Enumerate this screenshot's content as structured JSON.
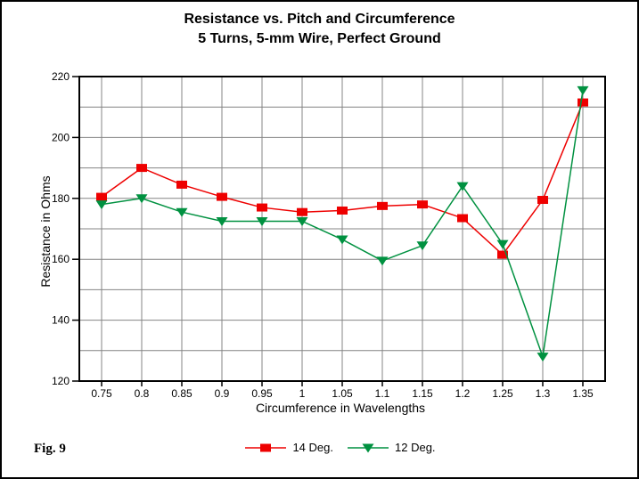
{
  "window": {
    "background": "#ffffff",
    "border_color": "#000000"
  },
  "title": {
    "line1": "Resistance vs. Pitch and Circumference",
    "line2": "5 Turns, 5-mm Wire, Perfect Ground"
  },
  "fig_label": "Fig. 9",
  "chart_data": {
    "type": "line",
    "title": "Resistance vs. Pitch and Circumference",
    "subtitle": "5 Turns, 5-mm Wire, Perfect Ground",
    "xlabel": "Circumference in Wavelengths",
    "ylabel": "Resistance in Ohms",
    "categories": [
      0.75,
      0.8,
      0.85,
      0.9,
      0.95,
      1,
      1.05,
      1.1,
      1.15,
      1.2,
      1.25,
      1.3,
      1.35
    ],
    "x_tick_labels": [
      "0.75",
      "0.8",
      "0.85",
      "0.9",
      "0.95",
      "1",
      "1.05",
      "1.1",
      "1.15",
      "1.2",
      "1.25",
      "1.3",
      "1.35"
    ],
    "y_ticks": [
      120,
      140,
      160,
      180,
      200,
      220
    ],
    "y_tick_labels": [
      "120",
      "140",
      "160",
      "180",
      "200",
      "220"
    ],
    "ylim": [
      120,
      220
    ],
    "grid": {
      "on": true,
      "color": "#848484",
      "y_step": 10
    },
    "frame_color": "#000000",
    "tick_color": "#000000",
    "label_color": "#000000",
    "legend_position": "bottom-center",
    "series": [
      {
        "name": "14 Deg.",
        "color": "#ee0000",
        "marker": "square",
        "values": [
          180.5,
          190,
          184.5,
          180.5,
          177,
          175.5,
          176,
          177.5,
          178,
          173.5,
          161.5,
          179.5,
          211.5
        ]
      },
      {
        "name": "12 Deg.",
        "color": "#009140",
        "marker": "triangle-down",
        "values": [
          178,
          180,
          175.5,
          172.5,
          172.5,
          172.5,
          166.5,
          159.5,
          164.5,
          184,
          165,
          128,
          215.5
        ]
      }
    ]
  }
}
